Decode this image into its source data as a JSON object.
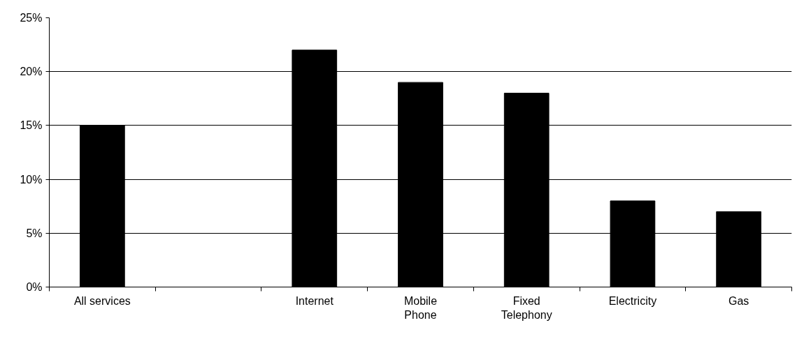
{
  "chart_data": {
    "type": "bar",
    "categories": [
      "All services",
      null,
      "Internet",
      "Mobile\nPhone",
      "Fixed\nTelephony",
      "Electricity",
      "Gas"
    ],
    "values": [
      15,
      null,
      22,
      19,
      18,
      8,
      7
    ],
    "color": "#000000",
    "ylim": [
      0,
      25
    ],
    "yticks": [
      {
        "value": 0,
        "label": "0%"
      },
      {
        "value": 5,
        "label": "5%"
      },
      {
        "value": 10,
        "label": "10%"
      },
      {
        "value": 15,
        "label": "15%"
      },
      {
        "value": 20,
        "label": "20%"
      },
      {
        "value": 25,
        "label": "25%"
      }
    ],
    "grid": "y"
  }
}
